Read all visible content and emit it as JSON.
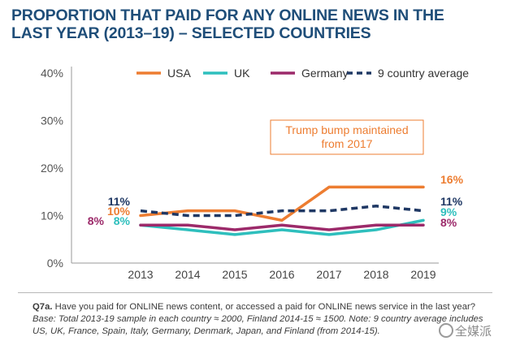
{
  "title_lines": [
    "PROPORTION THAT PAID FOR ANY ONLINE NEWS IN THE",
    "LAST YEAR (2013–19) – SELECTED COUNTRIES"
  ],
  "chart_data": {
    "type": "line",
    "x": [
      "2013",
      "2014",
      "2015",
      "2016",
      "2017",
      "2018",
      "2019"
    ],
    "ylim": [
      0,
      40
    ],
    "yticks": [
      0,
      10,
      20,
      30,
      40
    ],
    "ytick_labels": [
      "0%",
      "10%",
      "20%",
      "30%",
      "40%"
    ],
    "series": [
      {
        "name": "USA",
        "color": "#ed7d31",
        "dash": false,
        "values": [
          10,
          11,
          11,
          9,
          16,
          16,
          16
        ]
      },
      {
        "name": "UK",
        "color": "#2ebfbd",
        "dash": false,
        "values": [
          8,
          7,
          6,
          7,
          6,
          7,
          9
        ]
      },
      {
        "name": "Germany",
        "color": "#9c2a6a",
        "dash": false,
        "values": [
          8,
          8,
          7,
          8,
          7,
          8,
          8
        ]
      },
      {
        "name": "9 country average",
        "color": "#1f3864",
        "dash": true,
        "values": [
          11,
          10,
          10,
          11,
          11,
          12,
          11
        ]
      }
    ],
    "left_labels": [
      {
        "text": "11%",
        "color": "#1f3864",
        "series": "9 country average"
      },
      {
        "text": "10%",
        "color": "#ed7d31",
        "series": "USA"
      },
      {
        "text": "8%",
        "color": "#9c2a6a",
        "series": "Germany"
      },
      {
        "text": "8%",
        "color": "#2ebfbd",
        "series": "UK"
      }
    ],
    "right_labels": [
      {
        "text": "16%",
        "color": "#ed7d31",
        "series": "USA"
      },
      {
        "text": "11%",
        "color": "#1f3864",
        "series": "9 country average"
      },
      {
        "text": "9%",
        "color": "#2ebfbd",
        "series": "UK"
      },
      {
        "text": "8%",
        "color": "#9c2a6a",
        "series": "Germany"
      }
    ],
    "annotation": {
      "lines": [
        "Trump bump maintained",
        "from 2017"
      ],
      "color": "#ed7d31"
    },
    "legend_position": "top",
    "grid": false
  },
  "footnote": {
    "question": "Q7a.",
    "text": " Have you paid for ONLINE news content, or accessed a paid for ONLINE news service in the last year? ",
    "note": "Base: Total 2013-19 sample in each country ≈ 2000, Finland 2014-15 ≈ 1500. Note: 9 country average includes US, UK, France, Spain, Italy, Germany, Denmark, Japan, and Finland (from 2014-15)."
  },
  "watermark": "全媒派"
}
